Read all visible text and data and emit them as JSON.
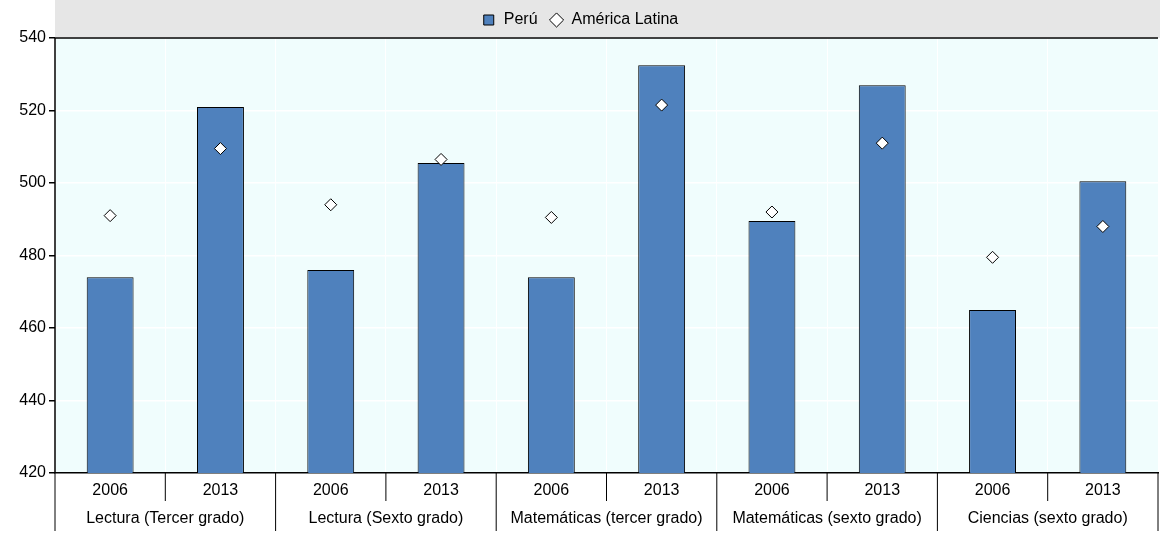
{
  "chart_data": {
    "type": "bar",
    "categories": [
      "2006",
      "2013",
      "2006",
      "2013",
      "2006",
      "2013",
      "2006",
      "2013",
      "2006",
      "2013"
    ],
    "annotations": [
      "Lectura (Tercer grado)",
      "Lectura (Sexto grado)",
      "Matemáticas (tercer grado)",
      "Matemáticas (sexto grado)",
      "Ciencias (sexto grado)"
    ],
    "series": [
      {
        "name": "Perú",
        "color": "#4f81bd",
        "values": [
          474,
          521,
          476,
          505.5,
          474,
          532.5,
          489.5,
          527,
          465,
          500.5
        ]
      },
      {
        "name": "América Latina",
        "type": "scatter",
        "color": "#ffffff",
        "marker": "diamond",
        "values": [
          491,
          509.5,
          494,
          506.5,
          490.5,
          521.5,
          492,
          511,
          479.5,
          488
        ]
      }
    ],
    "ylim": [
      420,
      540
    ],
    "yticks": [
      420,
      440,
      460,
      480,
      500,
      520,
      540
    ],
    "grid": true,
    "legend": "top"
  }
}
